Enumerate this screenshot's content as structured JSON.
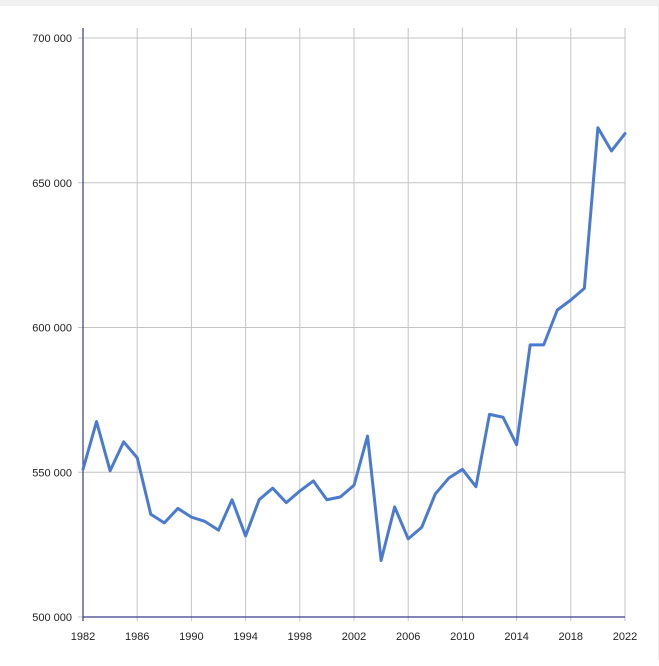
{
  "chart_data": {
    "type": "line",
    "title": "",
    "xlabel": "",
    "ylabel": "",
    "xlim": [
      1982,
      2022
    ],
    "ylim": [
      500000,
      700000
    ],
    "grid": true,
    "x_ticks": [
      1982,
      1986,
      1990,
      1994,
      1998,
      2002,
      2006,
      2010,
      2014,
      2018,
      2022
    ],
    "x_tick_labels": [
      "1982",
      "1986",
      "1990",
      "1994",
      "1998",
      "2002",
      "2006",
      "2010",
      "2014",
      "2018",
      "2022"
    ],
    "y_ticks": [
      500000,
      550000,
      600000,
      650000,
      700000
    ],
    "y_tick_labels": [
      "500 000",
      "550 000",
      "600 000",
      "650 000",
      "700 000"
    ],
    "series": [
      {
        "color": "#4a7bd0",
        "x": [
          1982,
          1983,
          1984,
          1985,
          1986,
          1987,
          1988,
          1989,
          1990,
          1991,
          1992,
          1993,
          1994,
          1995,
          1996,
          1997,
          1998,
          1999,
          2000,
          2001,
          2002,
          2003,
          2004,
          2005,
          2006,
          2007,
          2008,
          2009,
          2010,
          2011,
          2012,
          2013,
          2014,
          2015,
          2016,
          2017,
          2018,
          2019,
          2020,
          2021,
          2022
        ],
        "values": [
          551000,
          567500,
          550500,
          560500,
          555000,
          535500,
          532500,
          537500,
          534500,
          533000,
          530000,
          540500,
          528000,
          540500,
          544500,
          539500,
          543500,
          547000,
          540500,
          541500,
          545500,
          562500,
          519500,
          538000,
          527000,
          531000,
          542500,
          548000,
          551000,
          545000,
          570000,
          569000,
          559500,
          594000,
          594000,
          606000,
          609500,
          613500,
          669000,
          661000,
          667000
        ]
      }
    ]
  }
}
